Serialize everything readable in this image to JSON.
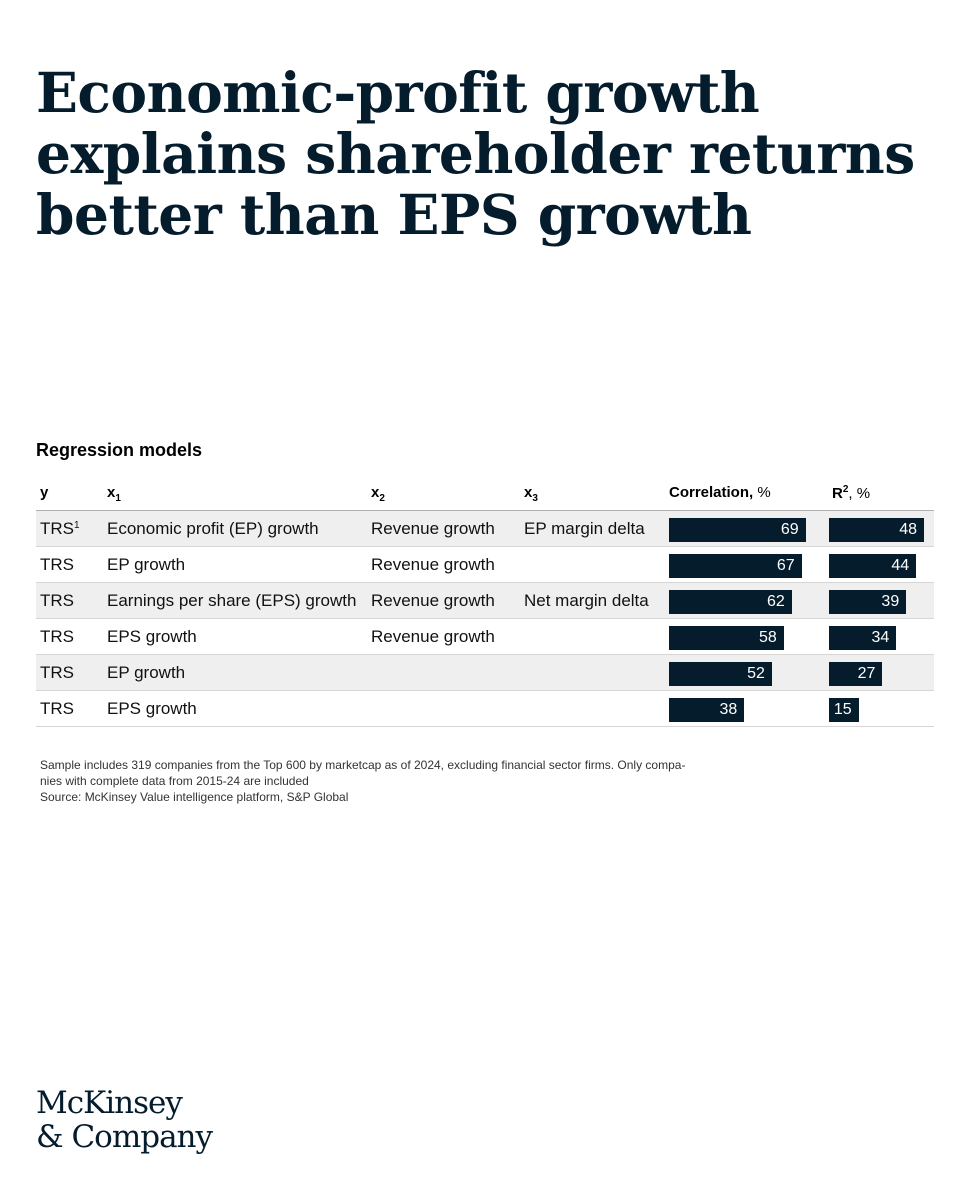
{
  "title": "Economic-profit growth explains shareholder returns better than EPS growth",
  "section_title": "Regression models",
  "headers": {
    "y": "y",
    "x1_base": "x",
    "x1_sub": "1",
    "x2_base": "x",
    "x2_sub": "2",
    "x3_base": "x",
    "x3_sub": "3",
    "corr_label": "Correlation,",
    "corr_unit": "%",
    "r2_label": "R",
    "r2_sup": "2",
    "r2_unit": ", %"
  },
  "chart_data": {
    "type": "table",
    "title": "Regression models",
    "columns": [
      "y",
      "x1",
      "x2",
      "x3",
      "Correlation, %",
      "R2, %"
    ],
    "rows": [
      {
        "y": "TRS",
        "y_sup": "1",
        "x1": "Economic profit (EP) growth",
        "x2": "Revenue growth",
        "x3": "EP margin delta",
        "correlation": 69,
        "r2": 48
      },
      {
        "y": "TRS",
        "y_sup": "",
        "x1": "EP growth",
        "x2": "Revenue growth",
        "x3": "",
        "correlation": 67,
        "r2": 44
      },
      {
        "y": "TRS",
        "y_sup": "",
        "x1": "Earnings per share (EPS) growth",
        "x2": "Revenue growth",
        "x3": "Net margin delta",
        "correlation": 62,
        "r2": 39
      },
      {
        "y": "TRS",
        "y_sup": "",
        "x1": "EPS growth",
        "x2": "Revenue growth",
        "x3": "",
        "correlation": 58,
        "r2": 34
      },
      {
        "y": "TRS",
        "y_sup": "",
        "x1": "EP growth",
        "x2": "",
        "x3": "",
        "correlation": 52,
        "r2": 27
      },
      {
        "y": "TRS",
        "y_sup": "",
        "x1": "EPS growth",
        "x2": "",
        "x3": "",
        "correlation": 38,
        "r2": 15
      }
    ]
  },
  "footnote": {
    "line1": "Sample includes 319 companies from the Top 600 by marketcap as of 2024, excluding financial sector firms. Only compa-",
    "line2": "nies with complete data from 2015-24 are included",
    "line3": "Source: McKinsey Value intelligence platform, S&P Global"
  },
  "logo": {
    "line1": "McKinsey",
    "line2": "& Company"
  },
  "colors": {
    "bar": "#051c2c",
    "row_shade": "#efefef",
    "title": "#051c2c"
  }
}
